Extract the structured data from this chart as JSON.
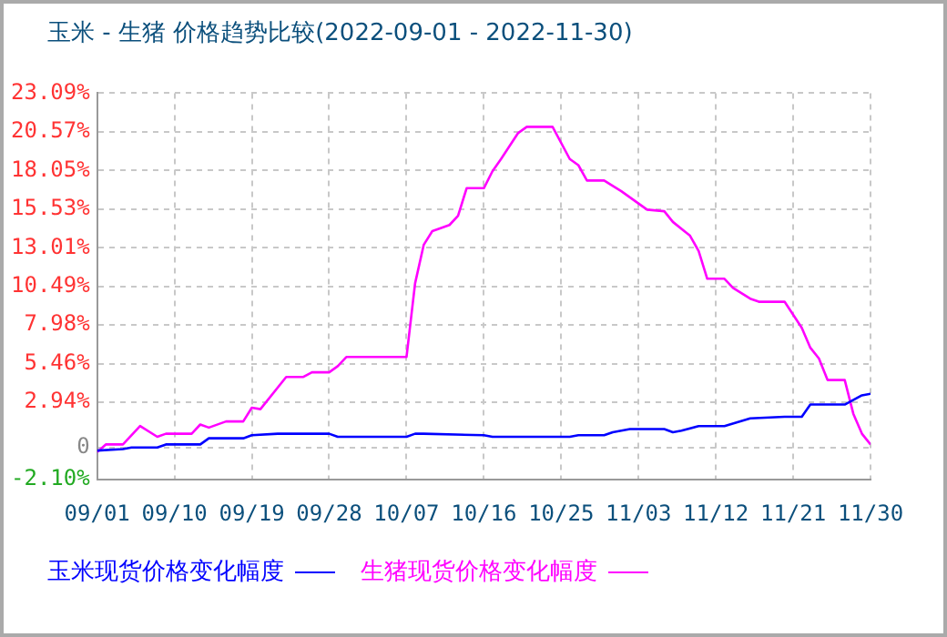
{
  "chart_data": {
    "type": "line",
    "title": "玉米 - 生猪 价格趋势比较(2022-09-01 - 2022-11-30)",
    "xlim": [
      "2022-09-01",
      "2022-11-30"
    ],
    "xticks": [
      {
        "value": "2022-09-01",
        "label": "09/01"
      },
      {
        "value": "2022-09-10",
        "label": "09/10"
      },
      {
        "value": "2022-09-19",
        "label": "09/19"
      },
      {
        "value": "2022-09-28",
        "label": "09/28"
      },
      {
        "value": "2022-10-07",
        "label": "10/07"
      },
      {
        "value": "2022-10-16",
        "label": "10/16"
      },
      {
        "value": "2022-10-25",
        "label": "10/25"
      },
      {
        "value": "2022-11-03",
        "label": "11/03"
      },
      {
        "value": "2022-11-12",
        "label": "11/12"
      },
      {
        "value": "2022-11-21",
        "label": "11/21"
      },
      {
        "value": "2022-11-30",
        "label": "11/30"
      }
    ],
    "ylim": [
      -2.1,
      23.09
    ],
    "yticks": [
      {
        "value": -2.1,
        "label": "-2.10%"
      },
      0,
      {
        "value": 2.94,
        "label": "2.94%"
      },
      {
        "value": 5.46,
        "label": "5.46%"
      },
      {
        "value": 7.98,
        "label": "7.98%"
      },
      {
        "value": 10.49,
        "label": "10.49%"
      },
      {
        "value": 13.01,
        "label": "13.01%"
      },
      {
        "value": 15.53,
        "label": "15.53%"
      },
      {
        "value": 18.05,
        "label": "18.05%"
      },
      {
        "value": 20.57,
        "label": "20.57%"
      },
      {
        "value": 23.09,
        "label": "23.09%"
      }
    ],
    "grid": true,
    "legend": "bottom",
    "marker": "none",
    "line_style": "solid",
    "series": [
      {
        "name": "玉米现货价格变化幅度",
        "color": "#0000ff",
        "x": [
          "2022-09-01",
          "2022-09-04",
          "2022-09-05",
          "2022-09-08",
          "2022-09-09",
          "2022-09-13",
          "2022-09-14",
          "2022-09-18",
          "2022-09-19",
          "2022-09-22",
          "2022-09-28",
          "2022-09-29",
          "2022-10-07",
          "2022-10-08",
          "2022-10-09",
          "2022-10-16",
          "2022-10-17",
          "2022-10-26",
          "2022-10-27",
          "2022-10-30",
          "2022-10-31",
          "2022-11-02",
          "2022-11-06",
          "2022-11-07",
          "2022-11-08",
          "2022-11-10",
          "2022-11-13",
          "2022-11-16",
          "2022-11-20",
          "2022-11-22",
          "2022-11-23",
          "2022-11-27",
          "2022-11-29",
          "2022-11-30"
        ],
        "values": [
          -0.2,
          -0.1,
          0,
          0,
          0.2,
          0.2,
          0.6,
          0.6,
          0.8,
          0.9,
          0.9,
          0.7,
          0.7,
          0.9,
          0.9,
          0.8,
          0.7,
          0.7,
          0.8,
          0.8,
          1.0,
          1.2,
          1.2,
          1.0,
          1.1,
          1.4,
          1.4,
          1.9,
          2.0,
          2.0,
          2.8,
          2.8,
          3.4,
          3.5
        ]
      },
      {
        "name": "生猪现货价格变化幅度",
        "color": "#ff00ff",
        "x": [
          "2022-09-01",
          "2022-09-02",
          "2022-09-04",
          "2022-09-06",
          "2022-09-08",
          "2022-09-09",
          "2022-09-12",
          "2022-09-13",
          "2022-09-14",
          "2022-09-16",
          "2022-09-18",
          "2022-09-19",
          "2022-09-20",
          "2022-09-23",
          "2022-09-25",
          "2022-09-26",
          "2022-09-28",
          "2022-09-29",
          "2022-09-30",
          "2022-10-07",
          "2022-10-08",
          "2022-10-09",
          "2022-10-10",
          "2022-10-12",
          "2022-10-13",
          "2022-10-14",
          "2022-10-16",
          "2022-10-17",
          "2022-10-18",
          "2022-10-20",
          "2022-10-21",
          "2022-10-24",
          "2022-10-26",
          "2022-10-27",
          "2022-10-28",
          "2022-10-30",
          "2022-11-01",
          "2022-11-04",
          "2022-11-06",
          "2022-11-07",
          "2022-11-09",
          "2022-11-10",
          "2022-11-11",
          "2022-11-13",
          "2022-11-14",
          "2022-11-16",
          "2022-11-17",
          "2022-11-20",
          "2022-11-22",
          "2022-11-23",
          "2022-11-24",
          "2022-11-25",
          "2022-11-27",
          "2022-11-28",
          "2022-11-29",
          "2022-11-30"
        ],
        "values": [
          -0.3,
          0.2,
          0.2,
          1.4,
          0.7,
          0.9,
          0.9,
          1.5,
          1.3,
          1.7,
          1.7,
          2.6,
          2.5,
          4.6,
          4.6,
          4.9,
          4.9,
          5.3,
          5.9,
          5.9,
          10.7,
          13.2,
          14.1,
          14.5,
          15.1,
          16.9,
          16.9,
          18.0,
          18.8,
          20.5,
          20.9,
          20.9,
          18.8,
          18.4,
          17.4,
          17.4,
          16.7,
          15.5,
          15.4,
          14.7,
          13.8,
          12.8,
          11.0,
          11.0,
          10.4,
          9.7,
          9.5,
          9.5,
          7.8,
          6.5,
          5.8,
          4.4,
          4.4,
          2.2,
          0.9,
          0.2
        ]
      }
    ]
  }
}
